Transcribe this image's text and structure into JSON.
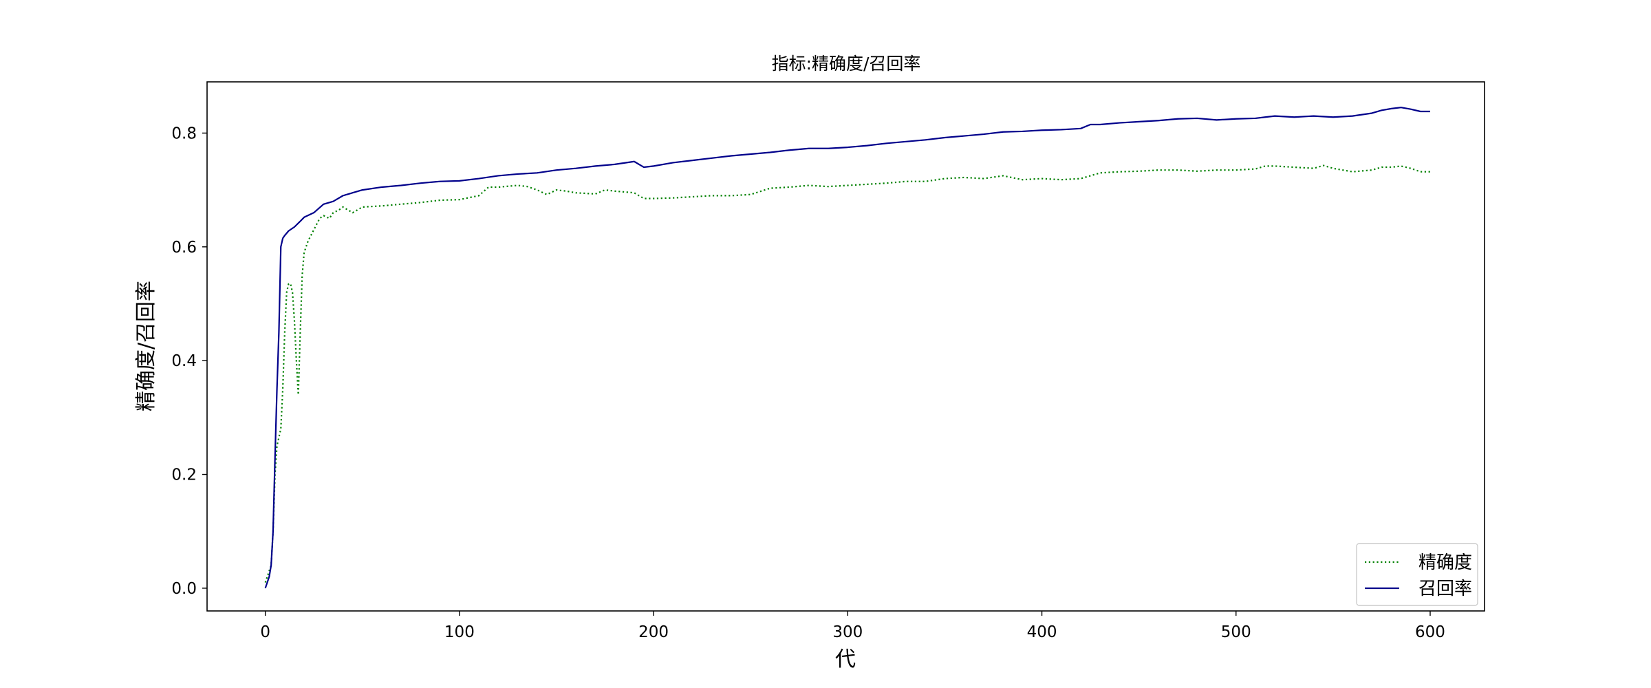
{
  "chart_data": {
    "type": "line",
    "title": "指标:精确度/召回率",
    "xlabel": "代",
    "ylabel": "精确度/召回率",
    "xlim": [
      -30,
      628
    ],
    "ylim": [
      -0.04,
      0.89
    ],
    "xticks": [
      0,
      100,
      200,
      300,
      400,
      500,
      600
    ],
    "yticks": [
      0.0,
      0.2,
      0.4,
      0.6,
      0.8
    ],
    "grid": false,
    "legend_position": "lower-right",
    "series": [
      {
        "name": "精确度",
        "color": "#008000",
        "style": "dotted",
        "points": [
          [
            0,
            0.01
          ],
          [
            2,
            0.03
          ],
          [
            3,
            0.04
          ],
          [
            4,
            0.1
          ],
          [
            5,
            0.2
          ],
          [
            6,
            0.25
          ],
          [
            8,
            0.28
          ],
          [
            9,
            0.35
          ],
          [
            10,
            0.45
          ],
          [
            11,
            0.52
          ],
          [
            12,
            0.535
          ],
          [
            13,
            0.535
          ],
          [
            14,
            0.52
          ],
          [
            15,
            0.47
          ],
          [
            16,
            0.4
          ],
          [
            17,
            0.34
          ],
          [
            18,
            0.45
          ],
          [
            19,
            0.55
          ],
          [
            20,
            0.59
          ],
          [
            22,
            0.61
          ],
          [
            25,
            0.63
          ],
          [
            28,
            0.65
          ],
          [
            30,
            0.655
          ],
          [
            33,
            0.65
          ],
          [
            35,
            0.66
          ],
          [
            38,
            0.665
          ],
          [
            40,
            0.67
          ],
          [
            45,
            0.66
          ],
          [
            50,
            0.67
          ],
          [
            60,
            0.672
          ],
          [
            70,
            0.675
          ],
          [
            80,
            0.678
          ],
          [
            90,
            0.682
          ],
          [
            100,
            0.683
          ],
          [
            110,
            0.69
          ],
          [
            115,
            0.705
          ],
          [
            120,
            0.705
          ],
          [
            130,
            0.708
          ],
          [
            135,
            0.706
          ],
          [
            140,
            0.7
          ],
          [
            145,
            0.692
          ],
          [
            150,
            0.7
          ],
          [
            155,
            0.698
          ],
          [
            160,
            0.695
          ],
          [
            170,
            0.693
          ],
          [
            175,
            0.7
          ],
          [
            180,
            0.698
          ],
          [
            190,
            0.695
          ],
          [
            195,
            0.685
          ],
          [
            200,
            0.685
          ],
          [
            210,
            0.686
          ],
          [
            220,
            0.688
          ],
          [
            230,
            0.69
          ],
          [
            240,
            0.69
          ],
          [
            250,
            0.692
          ],
          [
            260,
            0.703
          ],
          [
            270,
            0.705
          ],
          [
            280,
            0.708
          ],
          [
            290,
            0.706
          ],
          [
            300,
            0.708
          ],
          [
            310,
            0.71
          ],
          [
            320,
            0.712
          ],
          [
            330,
            0.715
          ],
          [
            340,
            0.715
          ],
          [
            350,
            0.72
          ],
          [
            360,
            0.722
          ],
          [
            370,
            0.72
          ],
          [
            380,
            0.725
          ],
          [
            390,
            0.718
          ],
          [
            400,
            0.72
          ],
          [
            410,
            0.718
          ],
          [
            420,
            0.72
          ],
          [
            430,
            0.73
          ],
          [
            440,
            0.732
          ],
          [
            450,
            0.733
          ],
          [
            460,
            0.735
          ],
          [
            470,
            0.735
          ],
          [
            480,
            0.733
          ],
          [
            490,
            0.735
          ],
          [
            500,
            0.735
          ],
          [
            510,
            0.737
          ],
          [
            515,
            0.742
          ],
          [
            520,
            0.742
          ],
          [
            530,
            0.74
          ],
          [
            540,
            0.738
          ],
          [
            545,
            0.743
          ],
          [
            550,
            0.738
          ],
          [
            560,
            0.732
          ],
          [
            570,
            0.735
          ],
          [
            575,
            0.74
          ],
          [
            580,
            0.74
          ],
          [
            585,
            0.742
          ],
          [
            590,
            0.738
          ],
          [
            595,
            0.732
          ],
          [
            600,
            0.732
          ]
        ]
      },
      {
        "name": "召回率",
        "color": "#00008b",
        "style": "solid",
        "points": [
          [
            0,
            0.0
          ],
          [
            2,
            0.02
          ],
          [
            3,
            0.04
          ],
          [
            4,
            0.1
          ],
          [
            5,
            0.23
          ],
          [
            6,
            0.35
          ],
          [
            7,
            0.45
          ],
          [
            8,
            0.6
          ],
          [
            9,
            0.615
          ],
          [
            10,
            0.62
          ],
          [
            12,
            0.628
          ],
          [
            15,
            0.635
          ],
          [
            18,
            0.645
          ],
          [
            20,
            0.652
          ],
          [
            25,
            0.66
          ],
          [
            30,
            0.675
          ],
          [
            35,
            0.68
          ],
          [
            40,
            0.69
          ],
          [
            45,
            0.695
          ],
          [
            50,
            0.7
          ],
          [
            60,
            0.705
          ],
          [
            70,
            0.708
          ],
          [
            80,
            0.712
          ],
          [
            90,
            0.715
          ],
          [
            100,
            0.716
          ],
          [
            110,
            0.72
          ],
          [
            120,
            0.725
          ],
          [
            130,
            0.728
          ],
          [
            140,
            0.73
          ],
          [
            150,
            0.735
          ],
          [
            160,
            0.738
          ],
          [
            170,
            0.742
          ],
          [
            180,
            0.745
          ],
          [
            190,
            0.75
          ],
          [
            195,
            0.74
          ],
          [
            200,
            0.742
          ],
          [
            210,
            0.748
          ],
          [
            220,
            0.752
          ],
          [
            230,
            0.756
          ],
          [
            240,
            0.76
          ],
          [
            250,
            0.763
          ],
          [
            260,
            0.766
          ],
          [
            270,
            0.77
          ],
          [
            280,
            0.773
          ],
          [
            290,
            0.773
          ],
          [
            300,
            0.775
          ],
          [
            310,
            0.778
          ],
          [
            320,
            0.782
          ],
          [
            330,
            0.785
          ],
          [
            340,
            0.788
          ],
          [
            350,
            0.792
          ],
          [
            360,
            0.795
          ],
          [
            370,
            0.798
          ],
          [
            380,
            0.802
          ],
          [
            390,
            0.803
          ],
          [
            400,
            0.805
          ],
          [
            410,
            0.806
          ],
          [
            420,
            0.808
          ],
          [
            425,
            0.815
          ],
          [
            430,
            0.815
          ],
          [
            440,
            0.818
          ],
          [
            450,
            0.82
          ],
          [
            460,
            0.822
          ],
          [
            470,
            0.825
          ],
          [
            480,
            0.826
          ],
          [
            490,
            0.823
          ],
          [
            500,
            0.825
          ],
          [
            510,
            0.826
          ],
          [
            515,
            0.828
          ],
          [
            520,
            0.83
          ],
          [
            530,
            0.828
          ],
          [
            540,
            0.83
          ],
          [
            550,
            0.828
          ],
          [
            560,
            0.83
          ],
          [
            570,
            0.835
          ],
          [
            575,
            0.84
          ],
          [
            580,
            0.843
          ],
          [
            585,
            0.845
          ],
          [
            590,
            0.842
          ],
          [
            595,
            0.838
          ],
          [
            600,
            0.838
          ]
        ]
      }
    ]
  }
}
